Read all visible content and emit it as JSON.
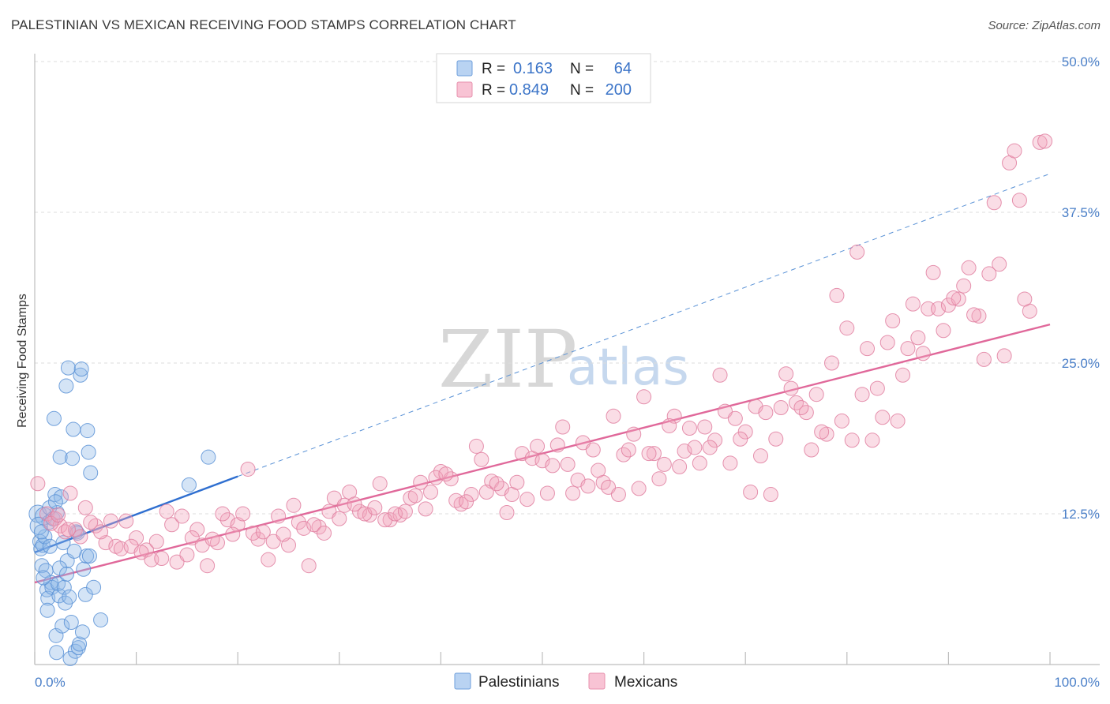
{
  "header": {
    "title": "PALESTINIAN VS MEXICAN RECEIVING FOOD STAMPS CORRELATION CHART",
    "source": "Source: ZipAtlas.com"
  },
  "legend": {
    "rows": [
      {
        "r_label": "R =",
        "r_value": "0.163",
        "n_label": "N =",
        "n_value": "64",
        "color": "#8fb7e8"
      },
      {
        "r_label": "R =",
        "r_value": "0.849",
        "n_label": "N =",
        "n_value": "200",
        "color": "#f2a6be"
      }
    ]
  },
  "bottom_legend": {
    "items": [
      {
        "label": "Palestinians",
        "color": "#8fb7e8"
      },
      {
        "label": "Mexicans",
        "color": "#f2a6be"
      }
    ]
  },
  "watermark": {
    "zip": "ZIP",
    "atlas": "atlas"
  },
  "chart_data": {
    "type": "scatter",
    "title": "PALESTINIAN VS MEXICAN RECEIVING FOOD STAMPS CORRELATION CHART",
    "xlabel": "",
    "ylabel": "Receiving Food Stamps",
    "xlim": [
      0,
      100
    ],
    "ylim": [
      0,
      50
    ],
    "x_tick_labels": [
      "0.0%",
      "100.0%"
    ],
    "y_tick_labels": [
      "12.5%",
      "25.0%",
      "37.5%",
      "50.0%"
    ],
    "y_ticks": [
      12.5,
      25.0,
      37.5,
      50.0
    ],
    "grid": true,
    "legend_position": "top-center",
    "series": [
      {
        "name": "Palestinians",
        "color": "#8fb7e8",
        "stroke": "#5a92d6",
        "trend": {
          "x0": 0,
          "y0": 9.3,
          "x1": 20,
          "y1": 15.6,
          "extend_to_x": 100,
          "extend_y": 40.7
        },
        "points": [
          [
            0.3,
            12.5
          ],
          [
            0.5,
            10.2
          ],
          [
            0.6,
            9.6
          ],
          [
            0.7,
            8.2
          ],
          [
            0.8,
            9.9
          ],
          [
            0.9,
            12.3
          ],
          [
            1.0,
            10.6
          ],
          [
            1.1,
            7.8
          ],
          [
            1.2,
            6.2
          ],
          [
            1.3,
            5.5
          ],
          [
            1.4,
            11.8
          ],
          [
            1.5,
            9.8
          ],
          [
            1.6,
            6.8
          ],
          [
            1.7,
            6.4
          ],
          [
            1.8,
            12.1
          ],
          [
            1.9,
            20.4
          ],
          [
            2.0,
            14.1
          ],
          [
            2.1,
            2.4
          ],
          [
            2.2,
            12.6
          ],
          [
            2.3,
            6.7
          ],
          [
            2.4,
            5.7
          ],
          [
            2.5,
            17.2
          ],
          [
            2.6,
            13.9
          ],
          [
            2.7,
            3.2
          ],
          [
            2.8,
            10.1
          ],
          [
            2.9,
            6.4
          ],
          [
            3.0,
            5.1
          ],
          [
            3.1,
            23.1
          ],
          [
            3.2,
            8.6
          ],
          [
            3.3,
            24.6
          ],
          [
            3.4,
            5.6
          ],
          [
            3.5,
            0.5
          ],
          [
            3.6,
            3.5
          ],
          [
            3.7,
            17.1
          ],
          [
            3.8,
            19.5
          ],
          [
            4.0,
            1.1
          ],
          [
            4.1,
            11.0
          ],
          [
            4.2,
            10.9
          ],
          [
            4.3,
            1.4
          ],
          [
            4.4,
            1.7
          ],
          [
            4.5,
            24.0
          ],
          [
            4.6,
            24.5
          ],
          [
            4.7,
            2.7
          ],
          [
            4.8,
            7.9
          ],
          [
            5.0,
            5.8
          ],
          [
            5.1,
            9.0
          ],
          [
            5.2,
            19.4
          ],
          [
            5.3,
            17.6
          ],
          [
            5.4,
            9.0
          ],
          [
            5.5,
            15.9
          ],
          [
            5.8,
            6.4
          ],
          [
            6.5,
            3.7
          ],
          [
            15.2,
            14.9
          ],
          [
            17.1,
            17.2
          ],
          [
            0.4,
            11.5
          ],
          [
            1.25,
            4.5
          ],
          [
            2.45,
            8.0
          ],
          [
            0.85,
            7.2
          ],
          [
            3.15,
            7.5
          ],
          [
            2.15,
            1.0
          ],
          [
            1.45,
            13.0
          ],
          [
            0.65,
            11.0
          ],
          [
            3.9,
            9.4
          ],
          [
            2.05,
            13.5
          ]
        ]
      },
      {
        "name": "Mexicans",
        "color": "#f2a6be",
        "stroke": "#e07fa0",
        "trend": {
          "x0": 0,
          "y0": 6.8,
          "x1": 100,
          "y1": 28.2
        },
        "points": [
          [
            0.3,
            15.0
          ],
          [
            1.2,
            12.5
          ],
          [
            2.0,
            12.1
          ],
          [
            2.5,
            11.5
          ],
          [
            3.0,
            11.0
          ],
          [
            3.5,
            14.2
          ],
          [
            4.0,
            11.2
          ],
          [
            5.0,
            13.0
          ],
          [
            6.0,
            11.5
          ],
          [
            7.0,
            10.1
          ],
          [
            8.0,
            9.8
          ],
          [
            9.0,
            11.9
          ],
          [
            10.0,
            10.5
          ],
          [
            11.0,
            9.5
          ],
          [
            12.0,
            10.2
          ],
          [
            13.0,
            12.7
          ],
          [
            14.0,
            8.5
          ],
          [
            15.0,
            9.1
          ],
          [
            16.0,
            11.2
          ],
          [
            17.0,
            8.2
          ],
          [
            18.0,
            10.1
          ],
          [
            19.0,
            12.0
          ],
          [
            20.0,
            11.6
          ],
          [
            21.0,
            16.2
          ],
          [
            22.0,
            10.4
          ],
          [
            23.0,
            8.7
          ],
          [
            24.0,
            12.3
          ],
          [
            25.0,
            9.9
          ],
          [
            26.0,
            11.8
          ],
          [
            27.0,
            8.2
          ],
          [
            28.0,
            11.4
          ],
          [
            29.0,
            12.7
          ],
          [
            30.0,
            12.1
          ],
          [
            31.0,
            14.3
          ],
          [
            32.0,
            12.7
          ],
          [
            33.0,
            12.4
          ],
          [
            34.0,
            15.0
          ],
          [
            35.0,
            12.0
          ],
          [
            36.0,
            12.4
          ],
          [
            37.0,
            13.8
          ],
          [
            38.0,
            15.1
          ],
          [
            39.0,
            14.3
          ],
          [
            40.0,
            16.0
          ],
          [
            41.0,
            15.4
          ],
          [
            42.0,
            13.3
          ],
          [
            43.0,
            14.1
          ],
          [
            44.0,
            17.0
          ],
          [
            45.0,
            15.2
          ],
          [
            46.0,
            14.6
          ],
          [
            47.0,
            14.1
          ],
          [
            48.0,
            17.5
          ],
          [
            49.0,
            17.1
          ],
          [
            50.0,
            16.9
          ],
          [
            51.0,
            16.5
          ],
          [
            52.0,
            19.7
          ],
          [
            53.0,
            14.2
          ],
          [
            54.0,
            18.4
          ],
          [
            55.0,
            17.8
          ],
          [
            56.0,
            15.1
          ],
          [
            57.0,
            20.6
          ],
          [
            58.0,
            17.4
          ],
          [
            59.0,
            19.1
          ],
          [
            60.0,
            22.2
          ],
          [
            61.0,
            17.5
          ],
          [
            62.0,
            16.6
          ],
          [
            63.0,
            20.6
          ],
          [
            64.0,
            17.7
          ],
          [
            65.0,
            18.0
          ],
          [
            66.0,
            19.7
          ],
          [
            67.0,
            18.6
          ],
          [
            68.0,
            21.0
          ],
          [
            69.0,
            20.4
          ],
          [
            70.0,
            19.3
          ],
          [
            71.0,
            21.4
          ],
          [
            72.0,
            20.9
          ],
          [
            73.0,
            18.7
          ],
          [
            74.0,
            24.1
          ],
          [
            75.0,
            21.7
          ],
          [
            76.0,
            20.9
          ],
          [
            77.0,
            22.4
          ],
          [
            78.0,
            19.1
          ],
          [
            79.0,
            30.6
          ],
          [
            80.0,
            27.9
          ],
          [
            81.0,
            34.2
          ],
          [
            82.0,
            26.2
          ],
          [
            83.0,
            22.9
          ],
          [
            84.0,
            26.7
          ],
          [
            85.0,
            20.2
          ],
          [
            86.0,
            26.2
          ],
          [
            87.0,
            27.1
          ],
          [
            88.0,
            29.5
          ],
          [
            89.0,
            29.5
          ],
          [
            90.0,
            29.8
          ],
          [
            91.0,
            30.3
          ],
          [
            92.0,
            32.9
          ],
          [
            93.0,
            28.9
          ],
          [
            94.0,
            32.4
          ],
          [
            95.0,
            33.2
          ],
          [
            96.0,
            41.6
          ],
          [
            97.0,
            38.5
          ],
          [
            98.0,
            29.3
          ],
          [
            99.0,
            43.3
          ],
          [
            1.6,
            11.7
          ],
          [
            2.3,
            12.4
          ],
          [
            3.3,
            11.2
          ],
          [
            4.5,
            10.6
          ],
          [
            5.5,
            11.8
          ],
          [
            6.5,
            11.0
          ],
          [
            7.5,
            11.9
          ],
          [
            8.5,
            9.6
          ],
          [
            9.5,
            9.8
          ],
          [
            10.5,
            9.3
          ],
          [
            11.5,
            8.7
          ],
          [
            12.5,
            8.8
          ],
          [
            13.5,
            11.6
          ],
          [
            14.5,
            12.3
          ],
          [
            15.5,
            10.5
          ],
          [
            16.5,
            9.9
          ],
          [
            17.5,
            10.4
          ],
          [
            18.5,
            12.5
          ],
          [
            19.5,
            10.8
          ],
          [
            20.5,
            12.5
          ],
          [
            21.5,
            10.9
          ],
          [
            22.5,
            11.0
          ],
          [
            23.5,
            10.2
          ],
          [
            24.5,
            10.8
          ],
          [
            25.5,
            13.2
          ],
          [
            26.5,
            11.3
          ],
          [
            27.5,
            11.6
          ],
          [
            28.5,
            10.9
          ],
          [
            29.5,
            13.8
          ],
          [
            30.5,
            13.2
          ],
          [
            31.5,
            13.3
          ],
          [
            32.5,
            12.5
          ],
          [
            33.5,
            13.0
          ],
          [
            34.5,
            12.0
          ],
          [
            35.5,
            12.5
          ],
          [
            36.5,
            12.7
          ],
          [
            37.5,
            14.0
          ],
          [
            38.5,
            12.9
          ],
          [
            39.5,
            15.5
          ],
          [
            40.5,
            15.8
          ],
          [
            41.5,
            13.6
          ],
          [
            42.5,
            13.5
          ],
          [
            43.5,
            18.1
          ],
          [
            44.5,
            14.3
          ],
          [
            45.5,
            15.0
          ],
          [
            46.5,
            12.6
          ],
          [
            47.5,
            15.1
          ],
          [
            48.5,
            13.7
          ],
          [
            49.5,
            18.1
          ],
          [
            50.5,
            14.2
          ],
          [
            51.5,
            18.2
          ],
          [
            52.5,
            16.6
          ],
          [
            53.5,
            15.3
          ],
          [
            54.5,
            14.8
          ],
          [
            55.5,
            16.1
          ],
          [
            56.5,
            14.7
          ],
          [
            57.5,
            14.1
          ],
          [
            58.5,
            17.8
          ],
          [
            59.5,
            14.6
          ],
          [
            60.5,
            17.5
          ],
          [
            61.5,
            15.4
          ],
          [
            62.5,
            19.8
          ],
          [
            63.5,
            16.4
          ],
          [
            64.5,
            19.6
          ],
          [
            65.5,
            16.7
          ],
          [
            66.5,
            18.0
          ],
          [
            67.5,
            24.0
          ],
          [
            68.5,
            16.7
          ],
          [
            69.5,
            18.7
          ],
          [
            70.5,
            14.3
          ],
          [
            71.5,
            17.3
          ],
          [
            72.5,
            14.1
          ],
          [
            73.5,
            21.3
          ],
          [
            74.5,
            22.9
          ],
          [
            75.5,
            21.3
          ],
          [
            76.5,
            17.8
          ],
          [
            77.5,
            19.3
          ],
          [
            78.5,
            25.0
          ],
          [
            79.5,
            20.2
          ],
          [
            80.5,
            18.6
          ],
          [
            81.5,
            22.4
          ],
          [
            82.5,
            18.6
          ],
          [
            83.5,
            20.5
          ],
          [
            84.5,
            28.5
          ],
          [
            85.5,
            24.0
          ],
          [
            86.5,
            29.9
          ],
          [
            87.5,
            25.8
          ],
          [
            88.5,
            32.5
          ],
          [
            89.5,
            27.7
          ],
          [
            90.5,
            30.4
          ],
          [
            91.5,
            31.4
          ],
          [
            92.5,
            29.0
          ],
          [
            93.5,
            25.3
          ],
          [
            94.5,
            38.3
          ],
          [
            95.5,
            25.6
          ],
          [
            96.5,
            42.6
          ],
          [
            97.5,
            30.3
          ],
          [
            99.5,
            43.4
          ]
        ]
      }
    ]
  }
}
